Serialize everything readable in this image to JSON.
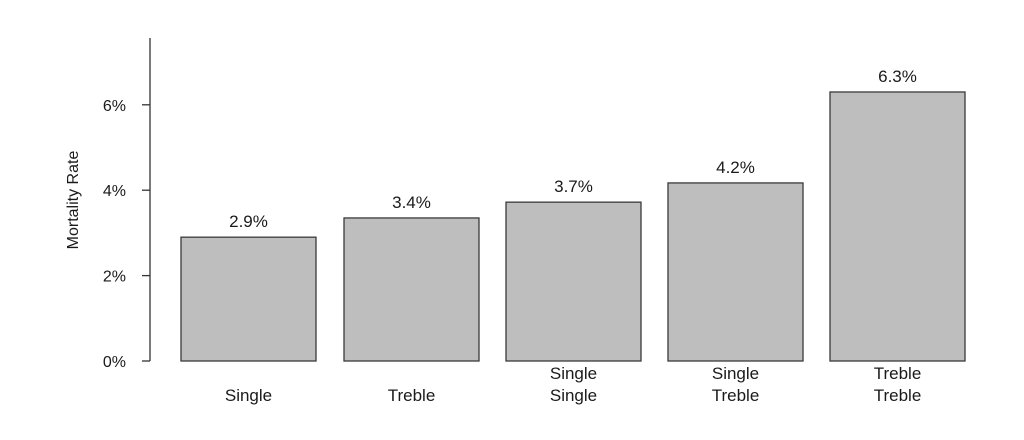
{
  "chart_data": {
    "type": "bar",
    "ylabel": "Mortality Rate",
    "xlabel": "",
    "ylim": [
      0,
      7.5
    ],
    "yticks": [
      0,
      2,
      4,
      6
    ],
    "ytick_labels": [
      "0%",
      "2%",
      "4%",
      "6%"
    ],
    "categories": [
      {
        "lines": [
          "Single"
        ]
      },
      {
        "lines": [
          "Treble"
        ]
      },
      {
        "lines": [
          "Single",
          "Single"
        ]
      },
      {
        "lines": [
          "Single",
          "Treble"
        ]
      },
      {
        "lines": [
          "Treble",
          "Treble"
        ]
      }
    ],
    "values": [
      2.9,
      3.35,
      3.72,
      4.17,
      6.3
    ],
    "value_labels": [
      "2.9%",
      "3.4%",
      "3.7%",
      "4.2%",
      "6.3%"
    ],
    "bar_color": "#bebebe",
    "grid": false,
    "legend": "none"
  }
}
